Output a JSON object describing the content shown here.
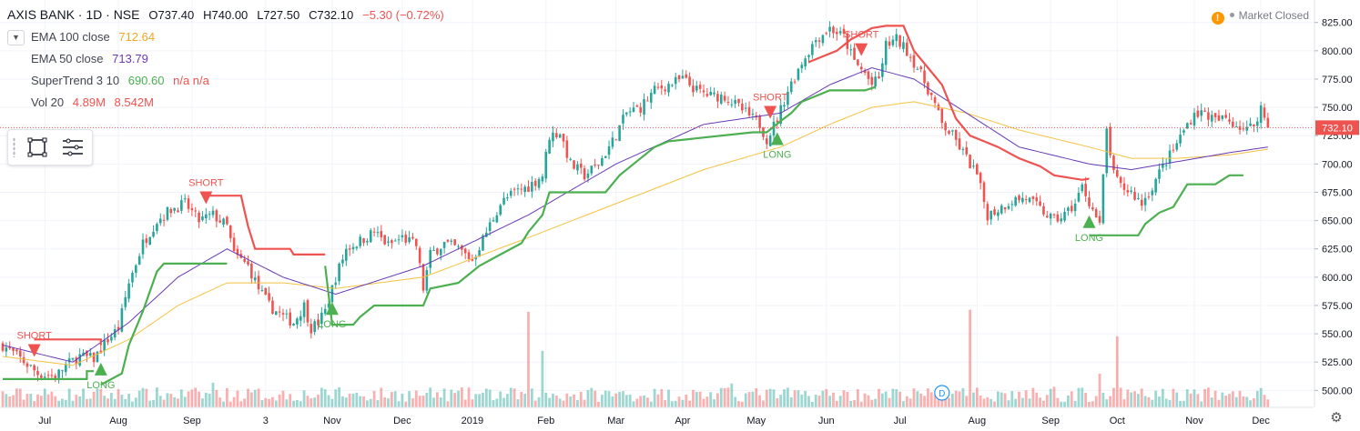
{
  "header": {
    "symbol": "AXIS BANK · 1D · NSE",
    "open": "O737.40",
    "high": "H740.00",
    "low": "L727.50",
    "close": "C732.10",
    "change": "−5.30 (−0.72%)"
  },
  "indicators": [
    {
      "name": "EMA 100 close",
      "value": "712.64",
      "color": "#f5a623"
    },
    {
      "name": "EMA 50 close",
      "value": "713.79",
      "color": "#673ab7"
    },
    {
      "name": "SuperTrend 3 10",
      "value": "690.60",
      "extra": "n/a n/a",
      "color": "#4caf50"
    },
    {
      "name": "Vol 20",
      "value": "4.89M",
      "extra": "8.542M",
      "color": "#ef5350"
    }
  ],
  "status": {
    "label": "Market Closed",
    "warn_icon": "!"
  },
  "price_tag": "732.10",
  "event_badge": "D",
  "colors": {
    "up": "#26a69a",
    "down": "#ef5350",
    "ema100": "#f5c242",
    "ema50": "#673ab7",
    "st_up": "#4caf50",
    "st_down": "#ef5350",
    "grid": "#f0f3fa",
    "axis_text": "#131722"
  },
  "chart_data": {
    "type": "candlestick",
    "y_ticks": [
      500,
      525,
      550,
      575,
      600,
      625,
      650,
      675,
      700,
      725,
      750,
      775,
      800,
      825
    ],
    "y_tick_labels": [
      "500.00",
      "525.00",
      "550.00",
      "575.00",
      "600.00",
      "625.00",
      "650.00",
      "675.00",
      "700.00",
      "725.00",
      "750.00",
      "775.00",
      "800.00",
      "825.00"
    ],
    "ylim": [
      485,
      832
    ],
    "x_labels": [
      {
        "label": "Jul",
        "i": 12
      },
      {
        "label": "Aug",
        "i": 33
      },
      {
        "label": "Sep",
        "i": 54
      },
      {
        "label": "3",
        "i": 75
      },
      {
        "label": "Nov",
        "i": 94
      },
      {
        "label": "Dec",
        "i": 114
      },
      {
        "label": "2019",
        "i": 134
      },
      {
        "label": "Feb",
        "i": 155
      },
      {
        "label": "Mar",
        "i": 175
      },
      {
        "label": "Apr",
        "i": 194
      },
      {
        "label": "May",
        "i": 215
      },
      {
        "label": "Jun",
        "i": 235
      },
      {
        "label": "Jul",
        "i": 256
      },
      {
        "label": "Aug",
        "i": 278
      },
      {
        "label": "Sep",
        "i": 299
      },
      {
        "label": "Oct",
        "i": 318
      },
      {
        "label": "Nov",
        "i": 340
      },
      {
        "label": "Dec",
        "i": 359
      }
    ],
    "close_anchors": [
      [
        0,
        540
      ],
      [
        5,
        528
      ],
      [
        10,
        515
      ],
      [
        15,
        512
      ],
      [
        18,
        522
      ],
      [
        22,
        530
      ],
      [
        26,
        528
      ],
      [
        30,
        545
      ],
      [
        33,
        555
      ],
      [
        36,
        595
      ],
      [
        40,
        630
      ],
      [
        44,
        650
      ],
      [
        48,
        660
      ],
      [
        52,
        665
      ],
      [
        56,
        650
      ],
      [
        60,
        655
      ],
      [
        64,
        645
      ],
      [
        66,
        620
      ],
      [
        70,
        610
      ],
      [
        73,
        590
      ],
      [
        76,
        575
      ],
      [
        80,
        565
      ],
      [
        83,
        560
      ],
      [
        86,
        575
      ],
      [
        88,
        555
      ],
      [
        90,
        560
      ],
      [
        92,
        570
      ],
      [
        95,
        600
      ],
      [
        98,
        625
      ],
      [
        102,
        632
      ],
      [
        106,
        640
      ],
      [
        110,
        628
      ],
      [
        114,
        635
      ],
      [
        118,
        628
      ],
      [
        120,
        590
      ],
      [
        122,
        620
      ],
      [
        126,
        630
      ],
      [
        130,
        625
      ],
      [
        134,
        615
      ],
      [
        138,
        640
      ],
      [
        142,
        665
      ],
      [
        146,
        675
      ],
      [
        150,
        680
      ],
      [
        154,
        690
      ],
      [
        156,
        725
      ],
      [
        159,
        728
      ],
      [
        162,
        700
      ],
      [
        166,
        690
      ],
      [
        170,
        700
      ],
      [
        174,
        720
      ],
      [
        178,
        745
      ],
      [
        182,
        750
      ],
      [
        186,
        765
      ],
      [
        190,
        770
      ],
      [
        194,
        775
      ],
      [
        198,
        765
      ],
      [
        202,
        760
      ],
      [
        206,
        760
      ],
      [
        210,
        750
      ],
      [
        214,
        740
      ],
      [
        216,
        735
      ],
      [
        218,
        722
      ],
      [
        221,
        740
      ],
      [
        224,
        765
      ],
      [
        228,
        790
      ],
      [
        232,
        810
      ],
      [
        236,
        820
      ],
      [
        240,
        812
      ],
      [
        243,
        790
      ],
      [
        246,
        780
      ],
      [
        248,
        770
      ],
      [
        250,
        775
      ],
      [
        252,
        805
      ],
      [
        255,
        810
      ],
      [
        258,
        800
      ],
      [
        261,
        785
      ],
      [
        265,
        760
      ],
      [
        268,
        735
      ],
      [
        271,
        725
      ],
      [
        274,
        710
      ],
      [
        276,
        700
      ],
      [
        278,
        690
      ],
      [
        281,
        655
      ],
      [
        284,
        660
      ],
      [
        288,
        668
      ],
      [
        292,
        670
      ],
      [
        296,
        660
      ],
      [
        300,
        650
      ],
      [
        303,
        655
      ],
      [
        306,
        665
      ],
      [
        308,
        680
      ],
      [
        311,
        660
      ],
      [
        313,
        645
      ],
      [
        315,
        730
      ],
      [
        317,
        690
      ],
      [
        319,
        680
      ],
      [
        322,
        675
      ],
      [
        325,
        665
      ],
      [
        328,
        680
      ],
      [
        331,
        698
      ],
      [
        334,
        712
      ],
      [
        337,
        730
      ],
      [
        340,
        745
      ],
      [
        343,
        745
      ],
      [
        346,
        738
      ],
      [
        349,
        740
      ],
      [
        352,
        735
      ],
      [
        355,
        730
      ],
      [
        357,
        735
      ],
      [
        359,
        750
      ],
      [
        361,
        732
      ]
    ],
    "ema50_anchors": [
      [
        0,
        540
      ],
      [
        20,
        525
      ],
      [
        36,
        560
      ],
      [
        50,
        600
      ],
      [
        64,
        625
      ],
      [
        80,
        600
      ],
      [
        95,
        585
      ],
      [
        120,
        610
      ],
      [
        150,
        655
      ],
      [
        175,
        700
      ],
      [
        200,
        735
      ],
      [
        222,
        745
      ],
      [
        236,
        770
      ],
      [
        248,
        785
      ],
      [
        260,
        775
      ],
      [
        275,
        745
      ],
      [
        290,
        715
      ],
      [
        310,
        700
      ],
      [
        322,
        695
      ],
      [
        335,
        702
      ],
      [
        350,
        710
      ],
      [
        361,
        715
      ]
    ],
    "ema100_anchors": [
      [
        0,
        530
      ],
      [
        20,
        522
      ],
      [
        36,
        545
      ],
      [
        50,
        575
      ],
      [
        64,
        595
      ],
      [
        80,
        595
      ],
      [
        95,
        590
      ],
      [
        120,
        600
      ],
      [
        150,
        635
      ],
      [
        175,
        665
      ],
      [
        200,
        695
      ],
      [
        222,
        715
      ],
      [
        236,
        735
      ],
      [
        248,
        750
      ],
      [
        260,
        755
      ],
      [
        275,
        745
      ],
      [
        290,
        730
      ],
      [
        310,
        715
      ],
      [
        322,
        705
      ],
      [
        335,
        705
      ],
      [
        350,
        708
      ],
      [
        361,
        713
      ]
    ],
    "supertrend_segments": [
      {
        "dir": "up",
        "points": [
          [
            0,
            510
          ],
          [
            24,
            510
          ],
          [
            24,
            517
          ],
          [
            26,
            517
          ]
        ]
      },
      {
        "dir": "down",
        "points": [
          [
            9,
            545
          ],
          [
            28,
            545
          ],
          [
            28,
            540
          ]
        ]
      },
      {
        "dir": "up",
        "points": [
          [
            28,
            505
          ],
          [
            34,
            515
          ],
          [
            36,
            540
          ],
          [
            40,
            570
          ],
          [
            44,
            605
          ],
          [
            46,
            612
          ],
          [
            64,
            612
          ]
        ]
      },
      {
        "dir": "down",
        "points": [
          [
            58,
            672
          ],
          [
            68,
            672
          ],
          [
            70,
            645
          ],
          [
            72,
            625
          ],
          [
            82,
            625
          ],
          [
            83,
            620
          ],
          [
            92,
            620
          ]
        ]
      },
      {
        "dir": "up",
        "points": [
          [
            92,
            610
          ],
          [
            94,
            558
          ],
          [
            100,
            558
          ],
          [
            102,
            565
          ],
          [
            106,
            575
          ],
          [
            120,
            575
          ],
          [
            122,
            590
          ],
          [
            130,
            595
          ],
          [
            136,
            610
          ],
          [
            142,
            620
          ],
          [
            148,
            630
          ],
          [
            150,
            640
          ],
          [
            154,
            655
          ],
          [
            156,
            675
          ],
          [
            172,
            675
          ],
          [
            176,
            690
          ],
          [
            180,
            700
          ],
          [
            186,
            715
          ],
          [
            190,
            720
          ],
          [
            214,
            728
          ],
          [
            218,
            728
          ],
          [
            222,
            738
          ],
          [
            225,
            745
          ],
          [
            228,
            755
          ],
          [
            232,
            760
          ],
          [
            236,
            765
          ],
          [
            246,
            765
          ],
          [
            249,
            768
          ]
        ]
      },
      {
        "dir": "down",
        "points": [
          [
            230,
            790
          ],
          [
            238,
            800
          ],
          [
            242,
            810
          ],
          [
            248,
            820
          ],
          [
            252,
            822
          ],
          [
            257,
            822
          ],
          [
            260,
            800
          ],
          [
            264,
            785
          ],
          [
            268,
            770
          ],
          [
            270,
            755
          ],
          [
            272,
            740
          ],
          [
            276,
            725
          ],
          [
            280,
            720
          ],
          [
            284,
            715
          ],
          [
            290,
            705
          ],
          [
            296,
            698
          ],
          [
            300,
            690
          ],
          [
            304,
            688
          ],
          [
            308,
            686
          ],
          [
            310,
            687
          ]
        ]
      },
      {
        "dir": "up",
        "points": [
          [
            310,
            637
          ],
          [
            324,
            637
          ],
          [
            326,
            647
          ],
          [
            330,
            657
          ],
          [
            334,
            662
          ],
          [
            336,
            672
          ],
          [
            338,
            682
          ],
          [
            346,
            682
          ],
          [
            350,
            690
          ],
          [
            354,
            690
          ]
        ]
      }
    ],
    "signals": [
      {
        "type": "SHORT",
        "i": 9
      },
      {
        "type": "LONG",
        "i": 28
      },
      {
        "type": "SHORT",
        "i": 58
      },
      {
        "type": "LONG",
        "i": 94
      },
      {
        "type": "SHORT",
        "i": 219
      },
      {
        "type": "LONG",
        "i": 221
      },
      {
        "type": "SHORT",
        "i": 245
      },
      {
        "type": "LONG",
        "i": 310
      }
    ],
    "volume_spikes": [
      [
        150,
        9
      ],
      [
        154,
        6
      ],
      [
        208,
        4
      ],
      [
        276,
        9
      ],
      [
        313,
        6
      ],
      [
        318,
        9
      ],
      [
        300,
        5
      ],
      [
        60,
        4
      ],
      [
        96,
        3
      ]
    ]
  }
}
